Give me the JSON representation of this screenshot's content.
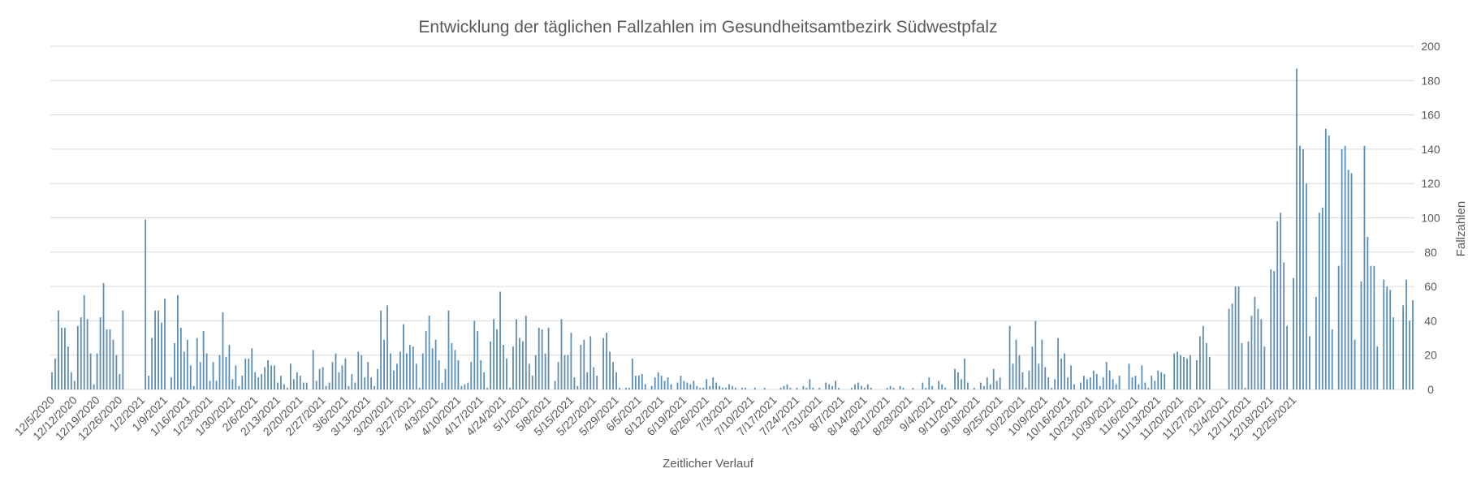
{
  "chart_data": {
    "type": "bar",
    "title": "Entwicklung der täglichen Fallzahlen im Gesundheitsamtbezirk Südwestpfalz",
    "xlabel": "Zeitlicher Verlauf",
    "ylabel": "Fallzahlen",
    "ylim": [
      0,
      200
    ],
    "y_ticks": [
      0,
      20,
      40,
      60,
      80,
      100,
      120,
      140,
      160,
      180,
      200
    ],
    "y_axis_side": "right",
    "grid": true,
    "legend": "none",
    "x_tick_labels": [
      "12/5/2020",
      "12/12/2020",
      "12/19/2020",
      "12/26/2020",
      "1/2/2021",
      "1/9/2021",
      "1/16/2021",
      "1/23/2021",
      "1/30/2021",
      "2/6/2021",
      "2/13/2021",
      "2/20/2021",
      "2/27/2021",
      "3/6/2021",
      "3/13/2021",
      "3/20/2021",
      "3/27/2021",
      "4/3/2021",
      "4/10/2021",
      "4/17/2021",
      "4/24/2021",
      "5/1/2021",
      "5/8/2021",
      "5/15/2021",
      "5/22/2021",
      "5/29/2021",
      "6/5/2021",
      "6/12/2021",
      "6/19/2021",
      "6/26/2021",
      "7/3/2021",
      "7/10/2021",
      "7/17/2021",
      "7/24/2021",
      "7/31/2021",
      "8/7/2021",
      "8/14/2021",
      "8/21/2021",
      "8/28/2021",
      "9/4/2021",
      "9/11/2021",
      "9/18/2021",
      "9/25/2021",
      "10/2/2021",
      "10/9/2021",
      "10/16/2021",
      "10/23/2021",
      "10/30/2021",
      "11/6/2021",
      "11/13/2021",
      "11/20/2021",
      "11/27/2021",
      "12/4/2021",
      "12/11/2021",
      "12/18/2021",
      "12/25/2021"
    ],
    "start_date": "12/5/2020",
    "series": [
      {
        "values": [
          10,
          18,
          46,
          36,
          36,
          25,
          10,
          5,
          37,
          42,
          55,
          41,
          21,
          3,
          21,
          42,
          62,
          35,
          35,
          29,
          20,
          9,
          46,
          0,
          0,
          0,
          0,
          0,
          0,
          99,
          8,
          30,
          46,
          46,
          39,
          53,
          0,
          7,
          27,
          55,
          36,
          22,
          29,
          14,
          2,
          30,
          16,
          34,
          21,
          5,
          16,
          5,
          20,
          45,
          19,
          26,
          6,
          14,
          2,
          8,
          18,
          18,
          24,
          10,
          7,
          9,
          13,
          17,
          14,
          14,
          4,
          8,
          3,
          1,
          15,
          6,
          10,
          8,
          4,
          4,
          0,
          23,
          5,
          12,
          13,
          2,
          4,
          16,
          21,
          10,
          14,
          18,
          2,
          9,
          4,
          22,
          20,
          7,
          16,
          7,
          2,
          12,
          46,
          29,
          49,
          21,
          11,
          15,
          22,
          38,
          21,
          26,
          25,
          15,
          1,
          21,
          34,
          43,
          24,
          29,
          17,
          4,
          12,
          46,
          27,
          23,
          17,
          2,
          3,
          4,
          16,
          40,
          34,
          17,
          10,
          1,
          28,
          41,
          35,
          57,
          26,
          18,
          1,
          25,
          41,
          30,
          28,
          43,
          15,
          8,
          20,
          36,
          35,
          21,
          36,
          0,
          5,
          16,
          41,
          20,
          20,
          33,
          7,
          2,
          26,
          29,
          10,
          31,
          13,
          8,
          0,
          30,
          33,
          22,
          16,
          10,
          1,
          0,
          1,
          1,
          18,
          8,
          8,
          9,
          3,
          0,
          2,
          7,
          10,
          8,
          5,
          7,
          3,
          0,
          4,
          8,
          5,
          4,
          3,
          5,
          2,
          1,
          1,
          6,
          2,
          7,
          4,
          2,
          1,
          1,
          3,
          2,
          1,
          0,
          1,
          1,
          0,
          0,
          1,
          0,
          0,
          1,
          0,
          0,
          0,
          0,
          1,
          2,
          3,
          1,
          0,
          1,
          0,
          2,
          1,
          6,
          1,
          0,
          1,
          0,
          4,
          3,
          2,
          5,
          1,
          0,
          0,
          0,
          1,
          3,
          4,
          2,
          1,
          3,
          1,
          0,
          0,
          0,
          0,
          1,
          2,
          1,
          0,
          2,
          1,
          0,
          0,
          1,
          0,
          0,
          4,
          1,
          7,
          2,
          0,
          5,
          3,
          1,
          0,
          0,
          12,
          10,
          6,
          18,
          4,
          0,
          1,
          0,
          4,
          2,
          7,
          3,
          12,
          5,
          7,
          0,
          0,
          37,
          15,
          29,
          20,
          10,
          1,
          11,
          25,
          40,
          15,
          29,
          13,
          7,
          1,
          6,
          30,
          18,
          21,
          7,
          14,
          3,
          0,
          4,
          8,
          6,
          7,
          11,
          9,
          2,
          7,
          16,
          11,
          6,
          3,
          8,
          0,
          0,
          15,
          7,
          8,
          3,
          14,
          4,
          1,
          8,
          5,
          11,
          10,
          9,
          0,
          0,
          21,
          22,
          20,
          19,
          18,
          20,
          0,
          17,
          31,
          37,
          27,
          19,
          0,
          0,
          0,
          0,
          0,
          47,
          50,
          60,
          60,
          27,
          1,
          28,
          43,
          54,
          47,
          41,
          25,
          0,
          70,
          69,
          98,
          103,
          74,
          37,
          0,
          65,
          187,
          142,
          140,
          120,
          31,
          0,
          54,
          103,
          106,
          152,
          148,
          35,
          0,
          72,
          140,
          142,
          128,
          126,
          29,
          0,
          63,
          142,
          89,
          72,
          72,
          25,
          0,
          64,
          60,
          58,
          42,
          0,
          0,
          49,
          64,
          40,
          52
        ]
      }
    ]
  }
}
